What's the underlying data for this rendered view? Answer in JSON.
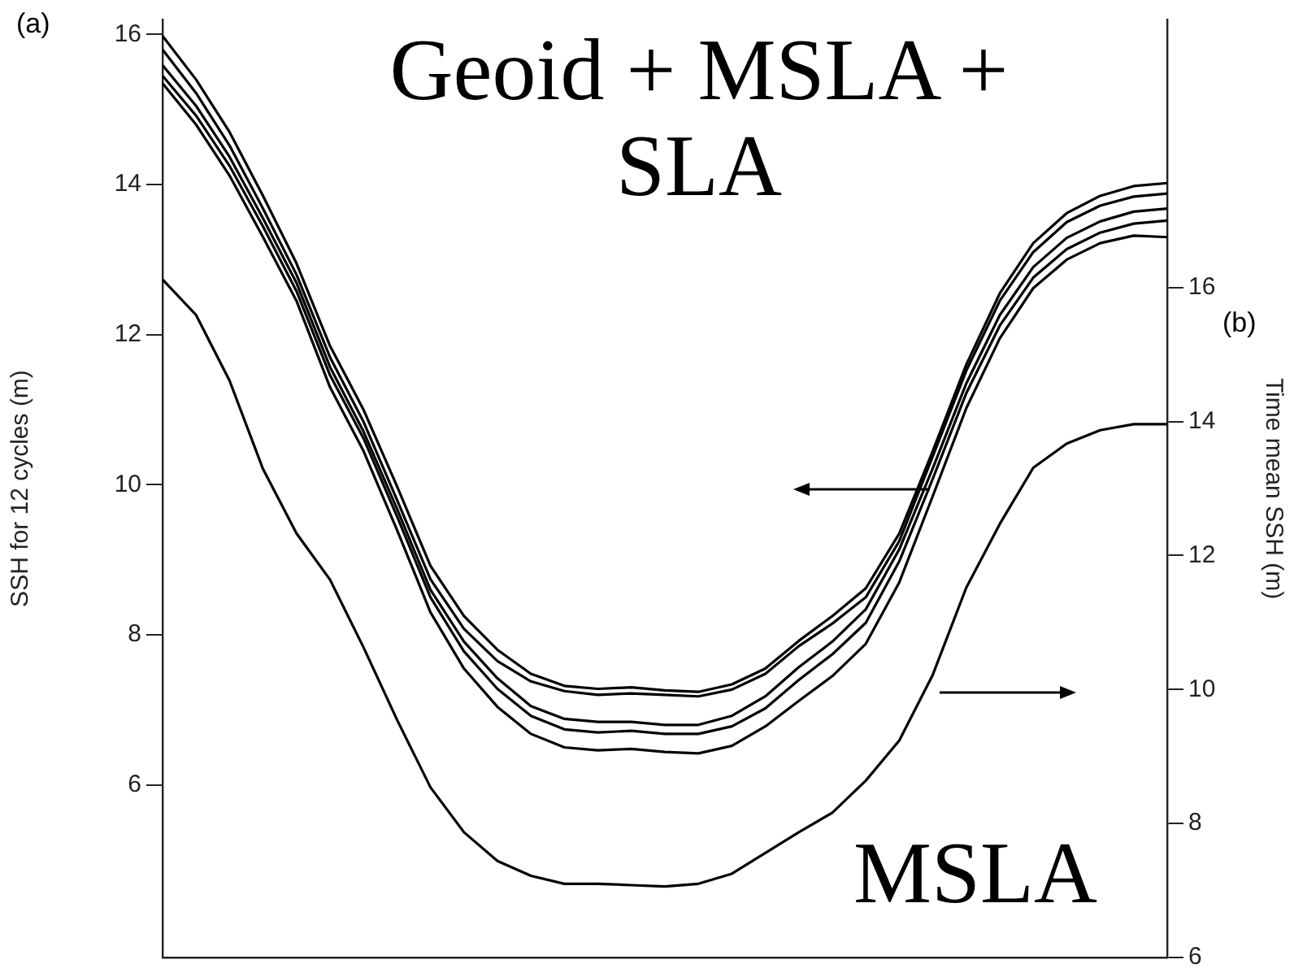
{
  "chart_data": {
    "type": "line",
    "ylabel": "SSH for 12 cycles (m)",
    "y2label": "Time mean SSH (m)",
    "annotations": [
      "(a)",
      "(b)",
      "Geoid + MSLA + SLA",
      "MSLA"
    ],
    "categories": [
      null,
      null,
      null,
      null,
      null,
      null,
      null,
      null,
      null,
      null,
      null,
      null,
      null,
      null,
      null,
      null,
      null,
      null,
      null,
      null,
      null,
      null,
      null,
      null,
      null,
      null,
      null,
      null,
      null,
      null,
      null
    ],
    "series": [
      {
        "color": "#000000",
        "values": [
          15.98,
          15.4,
          14.7,
          13.85,
          12.95,
          11.85,
          11.0,
          9.98,
          8.92,
          8.25,
          7.8,
          7.48,
          7.32,
          7.28,
          7.3,
          7.26,
          7.24,
          7.34,
          7.55,
          7.92,
          8.25,
          8.62,
          9.35,
          10.45,
          11.6,
          12.55,
          13.22,
          13.62,
          13.85,
          13.98,
          14.02
        ]
      },
      {
        "color": "#000000",
        "values": [
          15.8,
          15.22,
          14.52,
          13.68,
          12.8,
          11.7,
          10.84,
          9.8,
          8.74,
          8.08,
          7.65,
          7.38,
          7.25,
          7.2,
          7.22,
          7.2,
          7.18,
          7.27,
          7.48,
          7.85,
          8.15,
          8.5,
          9.25,
          10.38,
          11.52,
          12.45,
          13.1,
          13.5,
          13.72,
          13.84,
          13.88
        ]
      },
      {
        "color": "#000000",
        "values": [
          15.59,
          15.05,
          14.37,
          13.55,
          12.69,
          11.57,
          10.71,
          9.68,
          8.6,
          7.91,
          7.42,
          7.05,
          6.88,
          6.84,
          6.84,
          6.8,
          6.8,
          6.92,
          7.18,
          7.57,
          7.91,
          8.34,
          9.14,
          10.22,
          11.35,
          12.26,
          12.9,
          13.29,
          13.51,
          13.64,
          13.68
        ]
      },
      {
        "color": "#000000",
        "values": [
          15.45,
          14.92,
          14.25,
          13.44,
          12.58,
          11.46,
          10.62,
          9.58,
          8.5,
          7.78,
          7.28,
          6.92,
          6.74,
          6.7,
          6.72,
          6.68,
          6.68,
          6.78,
          7.02,
          7.4,
          7.74,
          8.16,
          8.98,
          10.08,
          11.22,
          12.12,
          12.76,
          13.14,
          13.36,
          13.48,
          13.52
        ]
      },
      {
        "color": "#000000",
        "values": [
          15.35,
          14.8,
          14.12,
          13.3,
          12.45,
          11.3,
          10.45,
          9.4,
          8.3,
          7.55,
          7.04,
          6.68,
          6.5,
          6.46,
          6.48,
          6.44,
          6.42,
          6.52,
          6.78,
          7.12,
          7.45,
          7.88,
          8.7,
          9.85,
          11.02,
          11.95,
          12.62,
          13.0,
          13.22,
          13.32,
          13.3
        ]
      },
      {
        "color": "#000000",
        "axis": "y2",
        "values": [
          16.12,
          15.59,
          14.61,
          13.29,
          12.33,
          11.64,
          10.63,
          9.55,
          8.54,
          7.87,
          7.44,
          7.22,
          7.1,
          7.1,
          7.08,
          7.06,
          7.1,
          7.25,
          7.56,
          7.87,
          8.16,
          8.64,
          9.24,
          10.22,
          11.52,
          12.47,
          13.31,
          13.67,
          13.87,
          13.96,
          13.96
        ]
      }
    ],
    "ylim": [
      3.7,
      16.2
    ],
    "yticks": [
      6,
      8,
      10,
      12,
      14,
      16
    ],
    "y2lim": [
      6,
      20
    ],
    "y2ticks": [
      6,
      8,
      10,
      12,
      14,
      16
    ],
    "grid": false,
    "legend": false,
    "marker": "none",
    "line_style": "solid"
  }
}
